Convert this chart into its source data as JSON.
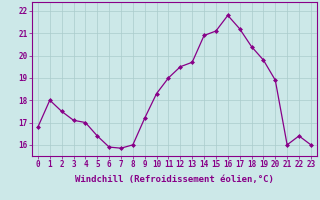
{
  "x": [
    0,
    1,
    2,
    3,
    4,
    5,
    6,
    7,
    8,
    9,
    10,
    11,
    12,
    13,
    14,
    15,
    16,
    17,
    18,
    19,
    20,
    21,
    22,
    23
  ],
  "y": [
    16.8,
    18.0,
    17.5,
    17.1,
    17.0,
    16.4,
    15.9,
    15.85,
    16.0,
    17.2,
    18.3,
    19.0,
    19.5,
    19.7,
    20.9,
    21.1,
    21.8,
    21.2,
    20.4,
    19.8,
    18.9,
    16.0,
    16.4,
    16.0
  ],
  "line_color": "#880088",
  "marker_color": "#880088",
  "bg_color": "#cce8e8",
  "grid_color": "#aacccc",
  "xlabel": "Windchill (Refroidissement éolien,°C)",
  "xlim": [
    -0.5,
    23.5
  ],
  "ylim": [
    15.5,
    22.4
  ],
  "yticks": [
    16,
    17,
    18,
    19,
    20,
    21,
    22
  ],
  "xticks": [
    0,
    1,
    2,
    3,
    4,
    5,
    6,
    7,
    8,
    9,
    10,
    11,
    12,
    13,
    14,
    15,
    16,
    17,
    18,
    19,
    20,
    21,
    22,
    23
  ],
  "xtick_labels": [
    "0",
    "1",
    "2",
    "3",
    "4",
    "5",
    "6",
    "7",
    "8",
    "9",
    "10",
    "11",
    "12",
    "13",
    "14",
    "15",
    "16",
    "17",
    "18",
    "19",
    "20",
    "21",
    "22",
    "23"
  ],
  "font_color": "#880088",
  "tick_fontsize": 5.5,
  "label_fontsize": 6.5
}
